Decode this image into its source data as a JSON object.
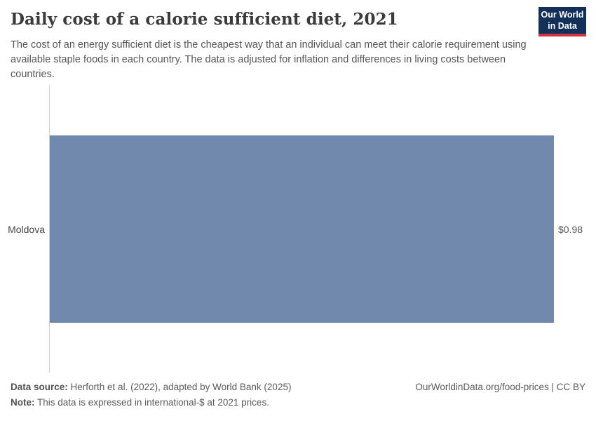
{
  "header": {
    "title": "Daily cost of a calorie sufficient diet, 2021",
    "subtitle": "The cost of an energy sufficient diet is the cheapest way that an individual can meet their calorie requirement using available staple foods in each country. The data is adjusted for inflation and differences in living costs between countries.",
    "logo": {
      "line1": "Our World",
      "line2": "in Data"
    }
  },
  "chart_data": {
    "type": "bar",
    "orientation": "horizontal",
    "title": "Daily cost of a calorie sufficient diet, 2021",
    "categories": [
      "Moldova"
    ],
    "values": [
      0.98
    ],
    "value_labels": [
      "$0.98"
    ],
    "unit": "international-$ per day",
    "xlabel": "",
    "ylabel": "",
    "xlim": [
      0,
      0.98
    ],
    "grid": false,
    "legend": false,
    "bar_color": "#7189ad"
  },
  "footer": {
    "data_source_label": "Data source:",
    "data_source_text": " Herforth et al. (2022), adapted by World Bank (2025)",
    "note_label": "Note:",
    "note_text": " This data is expressed in international-$ at 2021 prices.",
    "rights": "OurWorldinData.org/food-prices | CC BY"
  },
  "colors": {
    "bar": "#7189ad",
    "axis_line": "#cfcfcf",
    "logo_background": "#12305a",
    "logo_accent": "#d0343f",
    "title_text": "#3b3b3b",
    "body_text": "#565656"
  }
}
